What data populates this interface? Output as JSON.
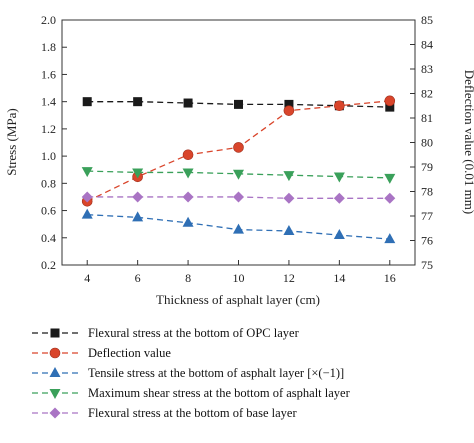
{
  "chart_data": {
    "type": "line",
    "xlabel": "Thickness of asphalt layer (cm)",
    "ylabel_left": "Stress (MPa)",
    "ylabel_right": "Deflection value (0.01 mm)",
    "x": [
      4,
      6,
      8,
      10,
      12,
      14,
      16
    ],
    "x_ticks": [
      "4",
      "6",
      "8",
      "10",
      "12",
      "14",
      "16"
    ],
    "xlim": [
      3,
      17
    ],
    "ylim_left": [
      0.2,
      2.0
    ],
    "ylim_right": [
      75,
      85
    ],
    "y_ticks_left": [
      "0.2",
      "0.4",
      "0.6",
      "0.8",
      "1.0",
      "1.2",
      "1.4",
      "1.6",
      "1.8",
      "2.0"
    ],
    "y_ticks_right": [
      "75",
      "76",
      "77",
      "78",
      "79",
      "80",
      "81",
      "82",
      "83",
      "84",
      "85"
    ],
    "grid": false,
    "legend_position": "bottom",
    "series": [
      {
        "name": "Flexural stress at the bottom of OPC layer",
        "axis": "left",
        "marker": "square",
        "color": "#1a1a1a",
        "values": [
          1.4,
          1.4,
          1.39,
          1.38,
          1.38,
          1.37,
          1.36
        ]
      },
      {
        "name": "Deflection value",
        "axis": "right",
        "marker": "circle",
        "color": "#d9452b",
        "values": [
          77.6,
          78.6,
          79.5,
          79.8,
          81.3,
          81.5,
          81.7
        ]
      },
      {
        "name": "Tensile stress at the bottom of asphalt layer [×(−1)]",
        "axis": "left",
        "marker": "triangle-up",
        "color": "#2f6fb5",
        "values": [
          0.57,
          0.55,
          0.51,
          0.46,
          0.45,
          0.42,
          0.39
        ]
      },
      {
        "name": "Maximum shear stress at the bottom of asphalt layer",
        "axis": "left",
        "marker": "triangle-down",
        "color": "#3aa05a",
        "values": [
          0.89,
          0.88,
          0.88,
          0.87,
          0.86,
          0.85,
          0.84
        ]
      },
      {
        "name": "Flexural stress at the bottom of base layer",
        "axis": "left",
        "marker": "diamond",
        "color": "#a974c4",
        "values": [
          0.7,
          0.7,
          0.7,
          0.7,
          0.69,
          0.69,
          0.69
        ]
      }
    ]
  }
}
